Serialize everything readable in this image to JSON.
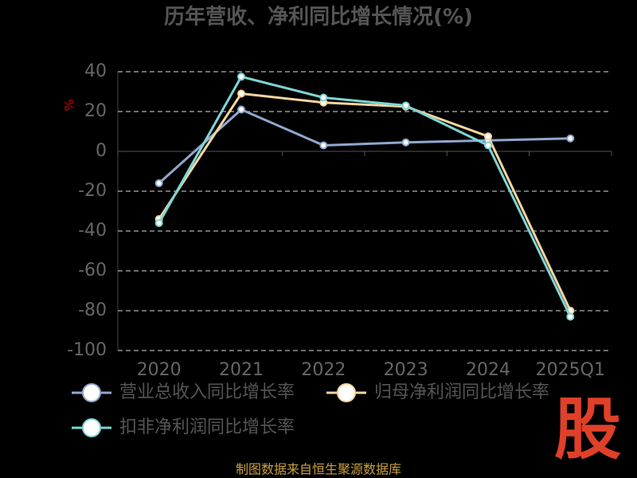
{
  "chart_data": {
    "type": "line",
    "title": "历年营收、净利同比增长情况(%)",
    "y_label": "%",
    "categories": [
      "2020",
      "2021",
      "2022",
      "2023",
      "2024",
      "2025Q1"
    ],
    "series": [
      {
        "name": "营业总收入同比增长率",
        "color": "#8fa8d0",
        "values": [
          -16,
          21,
          3,
          4.5,
          5.5,
          6.5
        ]
      },
      {
        "name": "归母净利润同比增长率",
        "color": "#f5d5a0",
        "values": [
          -34,
          29,
          24.5,
          22.5,
          7.5,
          -80
        ]
      },
      {
        "name": "扣非净利润同比增长率",
        "color": "#7fd4d4",
        "values": [
          -36,
          37.5,
          27,
          23,
          3,
          -83
        ]
      }
    ],
    "ylim": [
      -100,
      40
    ],
    "yticks": [
      -100,
      -80,
      -60,
      -40,
      -20,
      0,
      20,
      40
    ],
    "grid": true,
    "source": "制图数据来自恒生聚源数据库",
    "logo": "股"
  }
}
